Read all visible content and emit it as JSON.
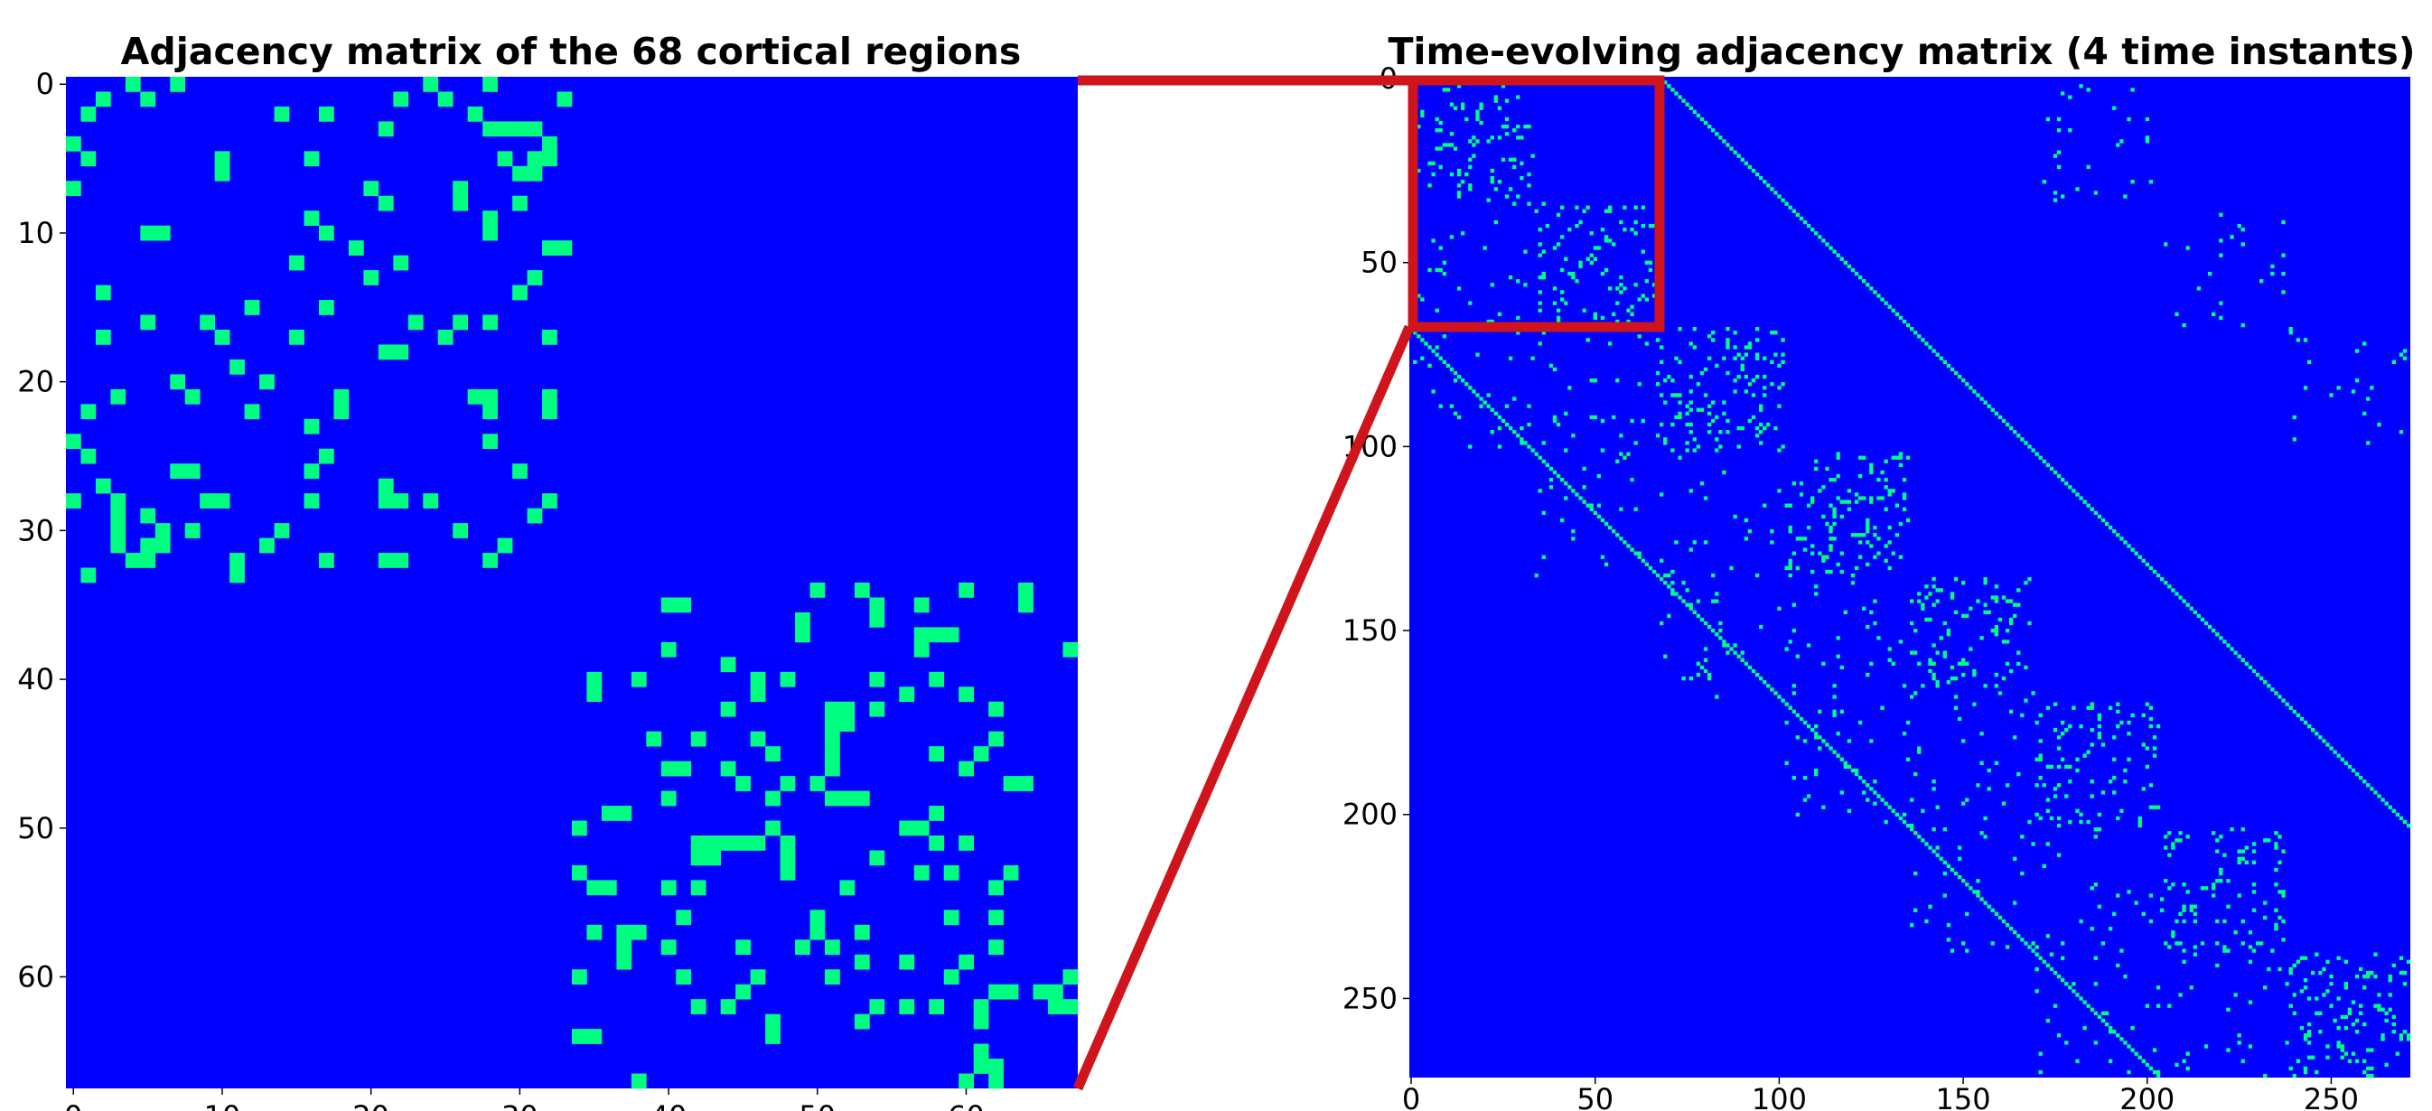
{
  "colors": {
    "background_cell": "#0000ff",
    "edge_cell": "#00ff80",
    "zoom_highlight": "#d0141b"
  },
  "chart_data": [
    {
      "type": "heatmap",
      "title": "Adjacency matrix of the 68 cortical regions",
      "xlabel": "",
      "ylabel": "",
      "size": 68,
      "xlim": [
        0,
        68
      ],
      "ylim": [
        68,
        0
      ],
      "xticks": [
        0,
        10,
        20,
        30,
        40,
        50,
        60
      ],
      "yticks": [
        0,
        10,
        20,
        30,
        40,
        50,
        60
      ],
      "values_legend": {
        "0": "no edge (blue)",
        "1": "edge (green)"
      },
      "blocks": [
        {
          "rows": [
            0,
            33
          ],
          "cols": [
            0,
            33
          ],
          "density": 0.1,
          "seed": 11
        },
        {
          "rows": [
            34,
            67
          ],
          "cols": [
            34,
            67
          ],
          "density": 0.1,
          "seed": 29
        }
      ]
    },
    {
      "type": "heatmap",
      "title": "Time-evolving adjacency matrix (4 time instants)",
      "xlabel": "",
      "ylabel": "",
      "size": 272,
      "xlim": [
        0,
        272
      ],
      "ylim": [
        272,
        0
      ],
      "xticks": [
        0,
        50,
        100,
        150,
        200,
        250
      ],
      "yticks": [
        0,
        50,
        100,
        150,
        200,
        250
      ],
      "diagonal_block_size": 34,
      "diagonal_block_density": 0.1,
      "offdiagonal_block_density": 0.025,
      "offdiagonal_block_offsets": [
        170,
        -34,
        -68
      ],
      "identity_coupling_offsets": [
        68,
        -68
      ],
      "zoom_box": {
        "rows": [
          0,
          68
        ],
        "cols": [
          0,
          68
        ]
      }
    }
  ]
}
